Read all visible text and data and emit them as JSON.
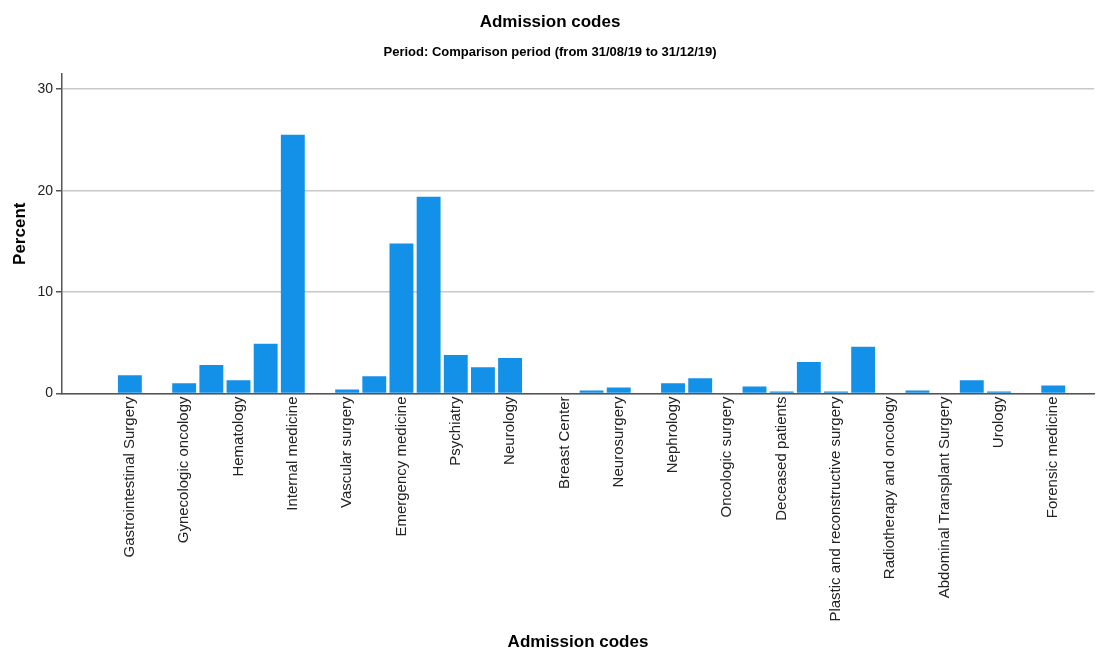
{
  "chart_data": {
    "type": "bar",
    "title": "Admission codes",
    "subtitle": "Period: Comparison period (from 31/08/19 to 31/12/19)",
    "xlabel": "Admission codes",
    "ylabel": "Percent",
    "categories": [
      null,
      null,
      "Gastrointestinal Surgery",
      null,
      "Gynecologic oncology",
      null,
      "Hematology",
      null,
      "Internal medicine",
      null,
      "Vascular surgery",
      null,
      "Emergency medicine",
      null,
      "Psychiatry",
      null,
      "Neurology",
      null,
      "Breast Center",
      null,
      "Neurosurgery",
      null,
      "Nephrology",
      null,
      "Oncologic surgery",
      null,
      "Deceased patients",
      null,
      "Plastic and reconstructive surgery",
      null,
      "Radiotherapy and oncology",
      null,
      "Abdominal Transplant Surgery",
      null,
      "Urology",
      null,
      "Forensic medicine",
      null
    ],
    "values": [
      0,
      0,
      1.8,
      0,
      1.0,
      2.8,
      1.3,
      4.9,
      25.5,
      null,
      0.4,
      1.7,
      14.8,
      19.4,
      3.8,
      2.6,
      3.5,
      0,
      null,
      0.3,
      0.6,
      null,
      1.0,
      1.5,
      null,
      0.7,
      0.2,
      3.1,
      0.2,
      4.6,
      0,
      0.3,
      0,
      1.3,
      0.2,
      null,
      0.8,
      0
    ],
    "color": "#1390e8",
    "ylim": [
      0,
      31.5
    ],
    "yticks": [
      0,
      10,
      20,
      30
    ],
    "grid": "y",
    "legend": false
  }
}
